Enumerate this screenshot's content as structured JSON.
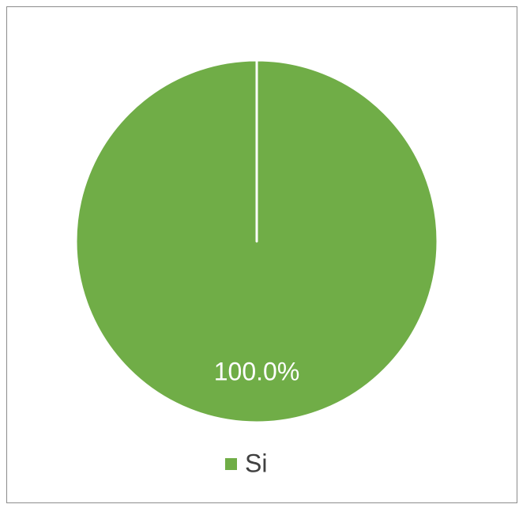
{
  "chart_data": {
    "type": "pie",
    "categories": [
      "Si"
    ],
    "values": [
      100
    ],
    "value_labels": [
      "100.0%"
    ],
    "colors": [
      "#70ad47"
    ],
    "legend": "bottom"
  }
}
